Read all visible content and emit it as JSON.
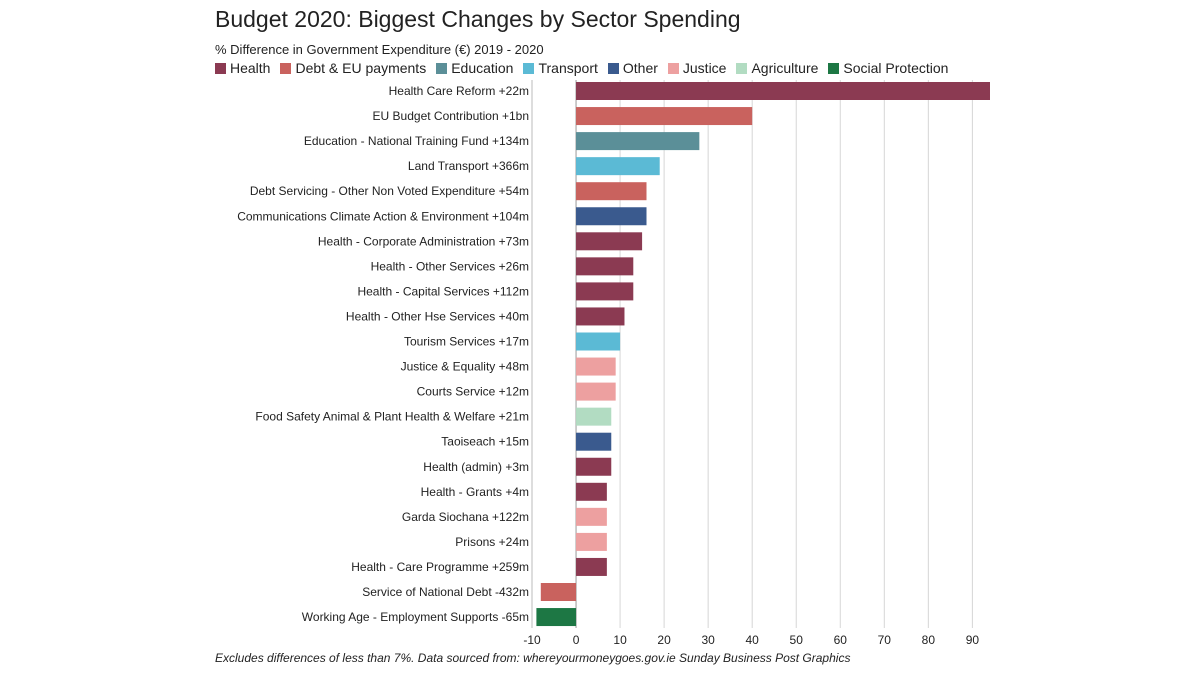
{
  "title": "Budget 2020: Biggest Changes by Sector Spending",
  "subtitle": "% Difference in Government Expenditure (€) 2019 - 2020",
  "footnote": "Excludes differences of less than 7%. Data sourced from: whereyourmoneygoes.gov.ie Sunday Business Post Graphics",
  "legend": [
    {
      "name": "Health",
      "color": "#8b3a52"
    },
    {
      "name": "Debt & EU payments",
      "color": "#c9625e"
    },
    {
      "name": "Education",
      "color": "#5b8f98"
    },
    {
      "name": "Transport",
      "color": "#5bbad5"
    },
    {
      "name": "Other",
      "color": "#3a5a8e"
    },
    {
      "name": "Justice",
      "color": "#eda0a0"
    },
    {
      "name": "Agriculture",
      "color": "#b2dcc2"
    },
    {
      "name": "Social Protection",
      "color": "#1d7744"
    }
  ],
  "chart_data": {
    "type": "bar",
    "orientation": "horizontal",
    "title": "Budget 2020: Biggest Changes by Sector Spending",
    "xlim": [
      -10,
      94
    ],
    "xticks": [
      -10,
      0,
      10,
      20,
      30,
      40,
      50,
      60,
      70,
      80,
      90
    ],
    "grid": true,
    "legend_position": "top",
    "bars": [
      {
        "label": "Health Care Reform +22m",
        "value": 94,
        "sector": "Health"
      },
      {
        "label": "EU Budget Contribution +1bn",
        "value": 40,
        "sector": "Debt & EU payments"
      },
      {
        "label": "Education - National Training Fund +134m",
        "value": 28,
        "sector": "Education"
      },
      {
        "label": "Land Transport +366m",
        "value": 19,
        "sector": "Transport"
      },
      {
        "label": "Debt Servicing - Other Non Voted Expenditure +54m",
        "value": 16,
        "sector": "Debt & EU payments"
      },
      {
        "label": "Communications Climate Action & Environment +104m",
        "value": 16,
        "sector": "Other"
      },
      {
        "label": "Health - Corporate Administration +73m",
        "value": 15,
        "sector": "Health"
      },
      {
        "label": "Health - Other Services +26m",
        "value": 13,
        "sector": "Health"
      },
      {
        "label": "Health - Capital Services +112m",
        "value": 13,
        "sector": "Health"
      },
      {
        "label": "Health - Other Hse Services +40m",
        "value": 11,
        "sector": "Health"
      },
      {
        "label": "Tourism Services +17m",
        "value": 10,
        "sector": "Transport"
      },
      {
        "label": "Justice & Equality +48m",
        "value": 9,
        "sector": "Justice"
      },
      {
        "label": "Courts Service +12m",
        "value": 9,
        "sector": "Justice"
      },
      {
        "label": "Food Safety Animal & Plant Health & Welfare +21m",
        "value": 8,
        "sector": "Agriculture"
      },
      {
        "label": "Taoiseach +15m",
        "value": 8,
        "sector": "Other"
      },
      {
        "label": "Health (admin) +3m",
        "value": 8,
        "sector": "Health"
      },
      {
        "label": "Health - Grants +4m",
        "value": 7,
        "sector": "Health"
      },
      {
        "label": "Garda Siochana +122m",
        "value": 7,
        "sector": "Justice"
      },
      {
        "label": "Prisons +24m",
        "value": 7,
        "sector": "Justice"
      },
      {
        "label": "Health - Care Programme +259m",
        "value": 7,
        "sector": "Health"
      },
      {
        "label": "Service of National Debt -432m",
        "value": -8,
        "sector": "Debt & EU payments"
      },
      {
        "label": "Working Age - Employment Supports -65m",
        "value": -9,
        "sector": "Social Protection"
      }
    ]
  }
}
